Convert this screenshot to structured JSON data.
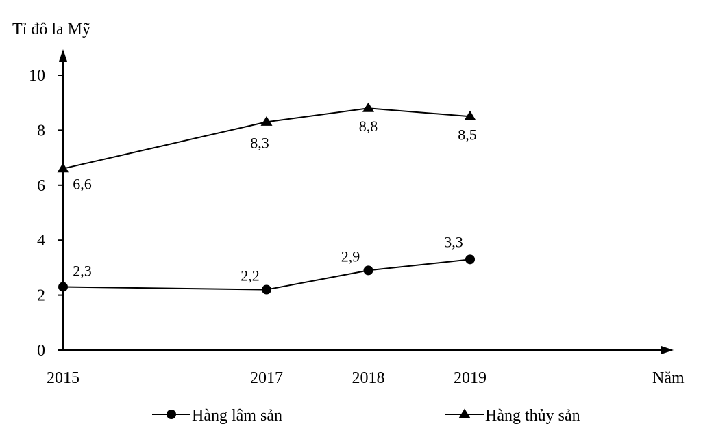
{
  "chart_data": {
    "type": "line",
    "ylabel": "Tỉ đô la Mỹ",
    "xlabel": "Năm",
    "x": [
      2015,
      2017,
      2018,
      2019
    ],
    "xlim": [
      2015,
      2020
    ],
    "ylim": [
      0,
      10
    ],
    "yticks": [
      0,
      2,
      4,
      6,
      8,
      10
    ],
    "grid": false,
    "legend_position": "bottom",
    "series": [
      {
        "name": "Hàng lâm sản",
        "marker": "circle",
        "values": [
          2.3,
          2.2,
          2.9,
          3.3
        ],
        "labels": [
          "2,3",
          "2,2",
          "2,9",
          "3,3"
        ]
      },
      {
        "name": "Hàng thủy sản",
        "marker": "triangle",
        "values": [
          6.6,
          8.3,
          8.8,
          8.5
        ],
        "labels": [
          "6,6",
          "8,3",
          "8,8",
          "8,5"
        ]
      }
    ]
  }
}
